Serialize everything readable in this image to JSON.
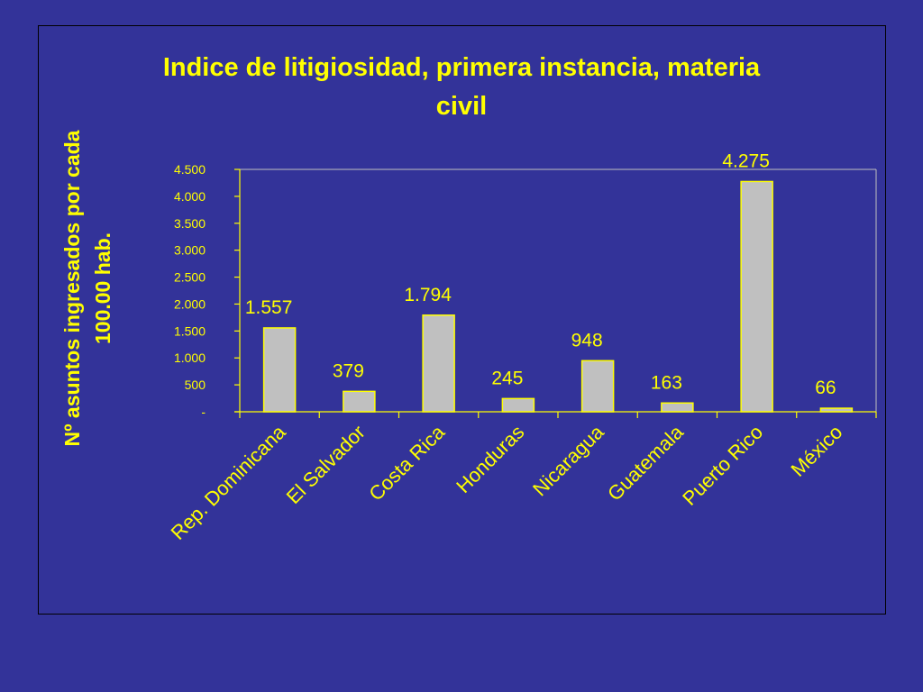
{
  "chart_data": {
    "type": "bar",
    "title_line1": "Indice de litigiosidad, primera instancia, materia",
    "title_line2": "civil",
    "ylabel_line1": "Nº asuntos ingresados por cada",
    "ylabel_line2": "100.00 hab.",
    "categories": [
      "Rep. Dominicana",
      "El Salvador",
      "Costa Rica",
      "Honduras",
      "Nicaragua",
      "Guatemala",
      "Puerto Rico",
      "México"
    ],
    "values": [
      1557,
      379,
      1794,
      245,
      948,
      163,
      4275,
      66
    ],
    "value_labels": [
      "1.557",
      "379",
      "1.794",
      "245",
      "948",
      "163",
      "4.275",
      "66"
    ],
    "ylim": [
      0,
      4500
    ],
    "yticks": [
      0,
      500,
      1000,
      1500,
      2000,
      2500,
      3000,
      3500,
      4000,
      4500
    ],
    "ytick_labels": [
      "-",
      "500",
      "1.000",
      "1.500",
      "2.000",
      "2.500",
      "3.000",
      "3.500",
      "4.000",
      "4.500"
    ],
    "grid": false,
    "legend": "none",
    "colors": {
      "background": "#333399",
      "text": "#FFFF00",
      "bar_fill": "#C0C0C0",
      "bar_stroke": "#FFFF00",
      "axis": "#FFFF00"
    }
  }
}
